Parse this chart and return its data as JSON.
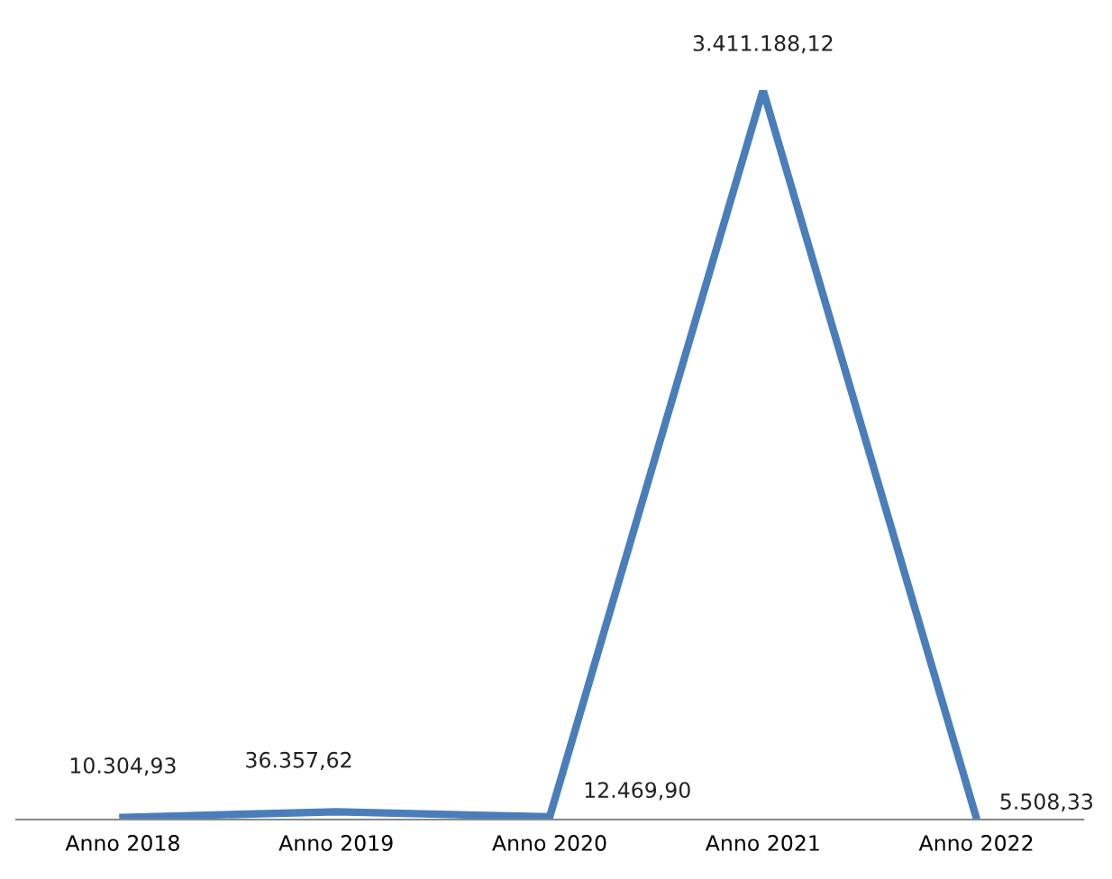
{
  "chart_data": {
    "type": "line",
    "categories": [
      "Anno 2018",
      "Anno 2019",
      "Anno 2020",
      "Anno 2021",
      "Anno 2022"
    ],
    "series": [
      {
        "color": "#4a7ebb",
        "values": [
          10304.93,
          36357.62,
          12469.9,
          3411188.12,
          5508.33
        ],
        "value_labels": [
          "10.304,93",
          "36.357,62",
          "12.469,90",
          "3.411.188,12",
          "5.508,33"
        ]
      }
    ],
    "grid": false,
    "marker": "none",
    "line_style": "solid"
  }
}
